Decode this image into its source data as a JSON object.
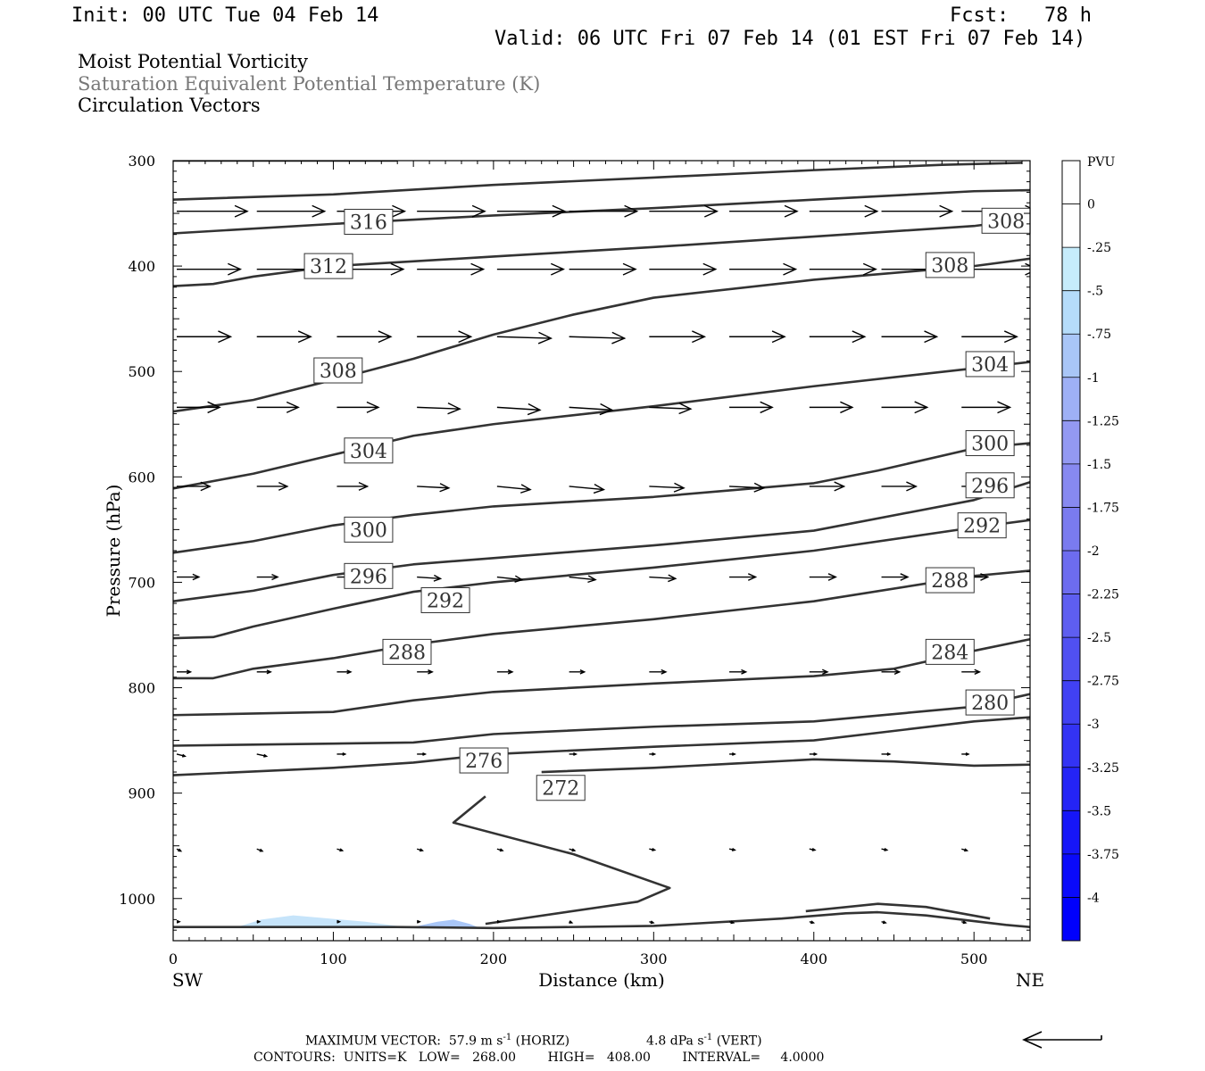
{
  "header": {
    "init": "Init: 00 UTC Tue 04 Feb 14",
    "fcst": "Fcst:   78 h",
    "valid": "Valid: 06 UTC Fri 07 Feb 14 (01 EST Fri 07 Feb 14)"
  },
  "titles": {
    "line1": "Moist Potential Vorticity",
    "line2": "Saturation Equivalent Potential Temperature (K)",
    "line3": "Circulation Vectors"
  },
  "footer": {
    "max_vector_label": "MAXIMUM VECTOR:",
    "horiz_value": "57.9",
    "horiz_unit": " m s",
    "horiz_exp": "-1",
    "horiz_tag": " (HORIZ)",
    "vert_value": "4.8",
    "vert_unit": " dPa s",
    "vert_exp": "-1",
    "vert_tag": " (VERT)",
    "contours_line": "CONTOURS:  UNITS=K   LOW=   268.00        HIGH=   408.00        INTERVAL=     4.0000"
  },
  "colors": {
    "contour": "#333333",
    "vector": "#000000",
    "mpv_light": "#c6e4fa",
    "mpv_mid": "#a9c6f7",
    "colorbar": [
      "#ffffff",
      "#ffffff",
      "#c6ecfb",
      "#b5dcfa",
      "#a9c6f7",
      "#9eb0f5",
      "#9399f2",
      "#8789f0",
      "#7a7bef",
      "#6d6cef",
      "#5e5ef0",
      "#5050f1",
      "#4141f3",
      "#3333f4",
      "#2424f6",
      "#1616f8",
      "#0a0afa",
      "#0000fc"
    ]
  },
  "chart_data": {
    "type": "cross-section",
    "xlabel": "Distance (km)",
    "ylabel": "Pressure (hPa)",
    "xlim": [
      0,
      535
    ],
    "ylim": [
      300,
      1040
    ],
    "y_scale": "linear-inverted",
    "x_ticks": [
      0,
      100,
      200,
      300,
      400,
      500
    ],
    "y_ticks": [
      300,
      400,
      500,
      600,
      700,
      800,
      900,
      1000
    ],
    "x_end_labels": {
      "left": "SW",
      "right": "NE"
    },
    "colorbar": {
      "unit": "PVU",
      "ticks": [
        "0",
        "-.25",
        "-.5",
        "-.75",
        "-1",
        "-1.25",
        "-1.5",
        "-1.75",
        "-2",
        "-2.25",
        "-2.5",
        "-2.75",
        "-3",
        "-3.25",
        "-3.5",
        "-3.75",
        "-4"
      ],
      "range": [
        0.25,
        -4.25
      ]
    },
    "contours": [
      {
        "value": 316,
        "points": [
          [
            0,
            300
          ],
          [
            140,
            300
          ]
        ]
      },
      {
        "value": 316,
        "points": [
          [
            0,
            337
          ],
          [
            100,
            332
          ],
          [
            200,
            323
          ],
          [
            300,
            316
          ],
          [
            400,
            309
          ],
          [
            480,
            304
          ],
          [
            530,
            302
          ]
        ]
      },
      {
        "value": 312,
        "points": [
          [
            0,
            369
          ],
          [
            100,
            360
          ],
          [
            200,
            352
          ],
          [
            300,
            345
          ],
          [
            400,
            337
          ],
          [
            500,
            329
          ],
          [
            535,
            328
          ]
        ]
      },
      {
        "value": 308,
        "points": [
          [
            0,
            419
          ],
          [
            25,
            417
          ],
          [
            50,
            410
          ],
          [
            100,
            400
          ],
          [
            200,
            391
          ],
          [
            300,
            382
          ],
          [
            400,
            372
          ],
          [
            500,
            362
          ],
          [
            535,
            355
          ]
        ]
      },
      {
        "value": 304,
        "points": [
          [
            0,
            538
          ],
          [
            50,
            527
          ],
          [
            100,
            508
          ],
          [
            150,
            488
          ],
          [
            200,
            465
          ],
          [
            250,
            446
          ],
          [
            300,
            430
          ],
          [
            400,
            413
          ],
          [
            500,
            400
          ],
          [
            535,
            393
          ]
        ]
      },
      {
        "value": 300,
        "points": [
          [
            0,
            611
          ],
          [
            50,
            597
          ],
          [
            100,
            579
          ],
          [
            150,
            561
          ],
          [
            200,
            550
          ],
          [
            300,
            533
          ],
          [
            400,
            514
          ],
          [
            500,
            497
          ],
          [
            535,
            491
          ]
        ]
      },
      {
        "value": 296,
        "points": [
          [
            0,
            672
          ],
          [
            50,
            661
          ],
          [
            100,
            646
          ],
          [
            150,
            636
          ],
          [
            200,
            628
          ],
          [
            300,
            619
          ],
          [
            400,
            606
          ],
          [
            440,
            594
          ],
          [
            500,
            573
          ],
          [
            535,
            568
          ]
        ]
      },
      {
        "value": 292,
        "points": [
          [
            0,
            718
          ],
          [
            50,
            708
          ],
          [
            100,
            693
          ],
          [
            150,
            683
          ],
          [
            200,
            677
          ],
          [
            300,
            665
          ],
          [
            400,
            651
          ],
          [
            500,
            622
          ],
          [
            535,
            605
          ]
        ]
      },
      {
        "value": 288,
        "points": [
          [
            0,
            753
          ],
          [
            25,
            752
          ],
          [
            50,
            742
          ],
          [
            100,
            725
          ],
          [
            150,
            709
          ],
          [
            200,
            700
          ],
          [
            300,
            686
          ],
          [
            400,
            670
          ],
          [
            500,
            648
          ],
          [
            535,
            641
          ]
        ]
      },
      {
        "value": 284,
        "points": [
          [
            0,
            791
          ],
          [
            25,
            791
          ],
          [
            50,
            782
          ],
          [
            100,
            772
          ],
          [
            150,
            759
          ],
          [
            200,
            749
          ],
          [
            300,
            735
          ],
          [
            400,
            718
          ],
          [
            500,
            694
          ],
          [
            535,
            689
          ]
        ]
      },
      {
        "value": 280,
        "points": [
          [
            0,
            826
          ],
          [
            100,
            823
          ],
          [
            150,
            812
          ],
          [
            200,
            804
          ],
          [
            300,
            796
          ],
          [
            400,
            789
          ],
          [
            450,
            782
          ],
          [
            500,
            765
          ],
          [
            535,
            754
          ]
        ]
      },
      {
        "value": 276,
        "points": [
          [
            0,
            855
          ],
          [
            100,
            853
          ],
          [
            150,
            852
          ],
          [
            200,
            844
          ],
          [
            300,
            837
          ],
          [
            400,
            832
          ],
          [
            500,
            818
          ],
          [
            535,
            806
          ]
        ]
      },
      {
        "value": 272,
        "points": [
          [
            0,
            883
          ],
          [
            100,
            876
          ],
          [
            150,
            871
          ],
          [
            200,
            863
          ],
          [
            300,
            856
          ],
          [
            400,
            850
          ],
          [
            500,
            832
          ],
          [
            535,
            828
          ]
        ]
      },
      {
        "value": 272,
        "points": [
          [
            230,
            880
          ],
          [
            300,
            876
          ],
          [
            350,
            872
          ],
          [
            400,
            868
          ],
          [
            450,
            870
          ],
          [
            500,
            874
          ],
          [
            535,
            873
          ]
        ]
      },
      {
        "value": 268,
        "points": [
          [
            195,
            903
          ],
          [
            175,
            928
          ],
          [
            250,
            958
          ],
          [
            310,
            990
          ],
          [
            290,
            1003
          ],
          [
            195,
            1024
          ]
        ]
      },
      {
        "value": 268,
        "points": [
          [
            0,
            1027
          ],
          [
            140,
            1027
          ],
          [
            200,
            1028
          ],
          [
            300,
            1026
          ],
          [
            380,
            1019
          ],
          [
            420,
            1014
          ],
          [
            440,
            1013
          ],
          [
            470,
            1016
          ],
          [
            520,
            1025
          ],
          [
            535,
            1027
          ]
        ]
      },
      {
        "value": 268,
        "points": [
          [
            395,
            1012
          ],
          [
            440,
            1005
          ],
          [
            470,
            1008
          ],
          [
            510,
            1019
          ]
        ]
      }
    ],
    "contour_labels": [
      {
        "text": "316",
        "x": 122,
        "p": 358
      },
      {
        "text": "312",
        "x": 97,
        "p": 400
      },
      {
        "text": "308",
        "x": 520,
        "p": 357
      },
      {
        "text": "308",
        "x": 485,
        "p": 399
      },
      {
        "text": "308",
        "x": 103,
        "p": 499
      },
      {
        "text": "304",
        "x": 510,
        "p": 493
      },
      {
        "text": "304",
        "x": 122,
        "p": 575
      },
      {
        "text": "300",
        "x": 510,
        "p": 568
      },
      {
        "text": "300",
        "x": 122,
        "p": 650
      },
      {
        "text": "296",
        "x": 510,
        "p": 608
      },
      {
        "text": "296",
        "x": 122,
        "p": 694
      },
      {
        "text": "292",
        "x": 505,
        "p": 646
      },
      {
        "text": "292",
        "x": 170,
        "p": 717
      },
      {
        "text": "288",
        "x": 485,
        "p": 698
      },
      {
        "text": "288",
        "x": 146,
        "p": 766
      },
      {
        "text": "284",
        "x": 485,
        "p": 766
      },
      {
        "text": "280",
        "x": 510,
        "p": 814
      },
      {
        "text": "276",
        "x": 194,
        "p": 869
      },
      {
        "text": "272",
        "x": 242,
        "p": 895
      }
    ],
    "mpv_fill": [
      {
        "range": "-0.25 to -0.5",
        "points": [
          [
            40,
            1027
          ],
          [
            55,
            1020
          ],
          [
            75,
            1016
          ],
          [
            90,
            1018
          ],
          [
            120,
            1022
          ],
          [
            140,
            1026
          ],
          [
            140,
            1027
          ]
        ]
      },
      {
        "range": "-0.25 to -0.5",
        "points": [
          [
            150,
            1027
          ],
          [
            165,
            1022
          ],
          [
            175,
            1020
          ],
          [
            185,
            1024
          ],
          [
            190,
            1027
          ]
        ]
      }
    ],
    "vectors": {
      "x": [
        0,
        50,
        100,
        150,
        200,
        245,
        295,
        345,
        395,
        440,
        490
      ],
      "rows": [
        {
          "p": 348,
          "u": [
            51,
            49,
            49,
            49,
            49,
            49,
            49,
            49,
            49,
            51,
            55
          ],
          "w": [
            0,
            0,
            0,
            0,
            0,
            0,
            0,
            0,
            0,
            0,
            0
          ]
        },
        {
          "p": 403,
          "u": [
            46,
            48,
            48,
            48,
            48,
            48,
            48,
            48,
            48,
            51,
            55
          ],
          "w": [
            0,
            0,
            0,
            0,
            0,
            0,
            0,
            0,
            0,
            0,
            0
          ]
        },
        {
          "p": 467,
          "u": [
            39,
            39,
            39,
            39,
            39,
            40,
            40,
            40,
            40,
            40,
            40
          ],
          "w": [
            0,
            0,
            0,
            0,
            0.3,
            0.3,
            0,
            0,
            0,
            0,
            0
          ]
        },
        {
          "p": 534,
          "u": [
            31,
            30,
            30,
            31,
            31,
            31,
            30,
            31,
            31,
            33,
            35
          ],
          "w": [
            0,
            0,
            0,
            0.3,
            0.5,
            0.5,
            0.3,
            0,
            0,
            0,
            0
          ]
        },
        {
          "p": 609,
          "u": [
            24,
            22,
            22,
            23,
            24,
            25,
            25,
            25,
            25,
            25,
            25
          ],
          "w": [
            0,
            0,
            0,
            0.3,
            0.6,
            0.6,
            0.3,
            0.3,
            0,
            0,
            0
          ]
        },
        {
          "p": 695,
          "u": [
            16,
            15,
            15,
            17,
            18,
            19,
            19,
            19,
            19,
            19,
            19
          ],
          "w": [
            0,
            0,
            0,
            0.3,
            0.5,
            0.5,
            0.3,
            0,
            0,
            0,
            0
          ]
        },
        {
          "p": 785,
          "u": [
            10,
            10,
            10,
            11,
            11,
            11,
            12,
            12,
            13,
            13,
            13
          ],
          "w": [
            0,
            0,
            0,
            0,
            0,
            0,
            0,
            0,
            0,
            0,
            0
          ]
        },
        {
          "p": 863,
          "u": [
            6,
            7,
            6,
            6,
            5,
            5,
            4,
            4,
            5,
            6,
            5
          ],
          "w": [
            0.4,
            0.4,
            0,
            0,
            0,
            0,
            0,
            0,
            0,
            0,
            0
          ]
        },
        {
          "p": 953,
          "u": [
            3,
            4,
            4,
            4,
            4,
            4,
            4,
            4,
            4,
            4,
            4
          ],
          "w": [
            0.4,
            0.4,
            0.3,
            0.3,
            0.3,
            0.3,
            0.2,
            0.2,
            0.2,
            0.2,
            0.3
          ]
        },
        {
          "p": 1022,
          "u": [
            2,
            2,
            2,
            2,
            2,
            2,
            3,
            3,
            3,
            3,
            3
          ],
          "w": [
            0,
            0,
            0,
            0,
            0,
            0.2,
            0.2,
            0.2,
            0.2,
            0.2,
            0.2
          ]
        }
      ]
    }
  }
}
